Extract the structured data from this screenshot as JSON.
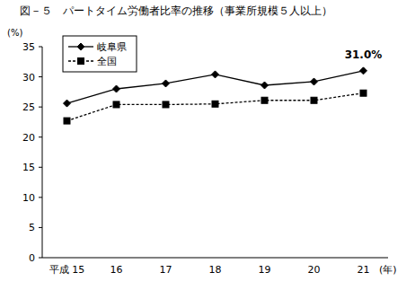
{
  "chart_data": {
    "type": "line",
    "title": "図－５　パートタイム労働者比率の推移（事業所規模５人以上）",
    "y_label": "(%)",
    "x_label": "(年)",
    "categories": [
      "平成 15",
      "16",
      "17",
      "18",
      "19",
      "20",
      "21"
    ],
    "series": [
      {
        "name": "岐阜県",
        "color": "#000000",
        "marker": "diamond",
        "line_style": "solid",
        "values": [
          25.6,
          28.0,
          28.9,
          30.4,
          28.6,
          29.2,
          31.0
        ]
      },
      {
        "name": "全国",
        "color": "#000000",
        "marker": "square",
        "line_style": "dashed",
        "values": [
          22.7,
          25.4,
          25.4,
          25.5,
          26.1,
          26.1,
          27.3
        ]
      }
    ],
    "annotation": "31.0%",
    "ylim": [
      0,
      35
    ],
    "yticks": [
      0,
      5,
      10,
      15,
      20,
      25,
      30,
      35
    ],
    "grid": false,
    "legend": "upper left"
  }
}
